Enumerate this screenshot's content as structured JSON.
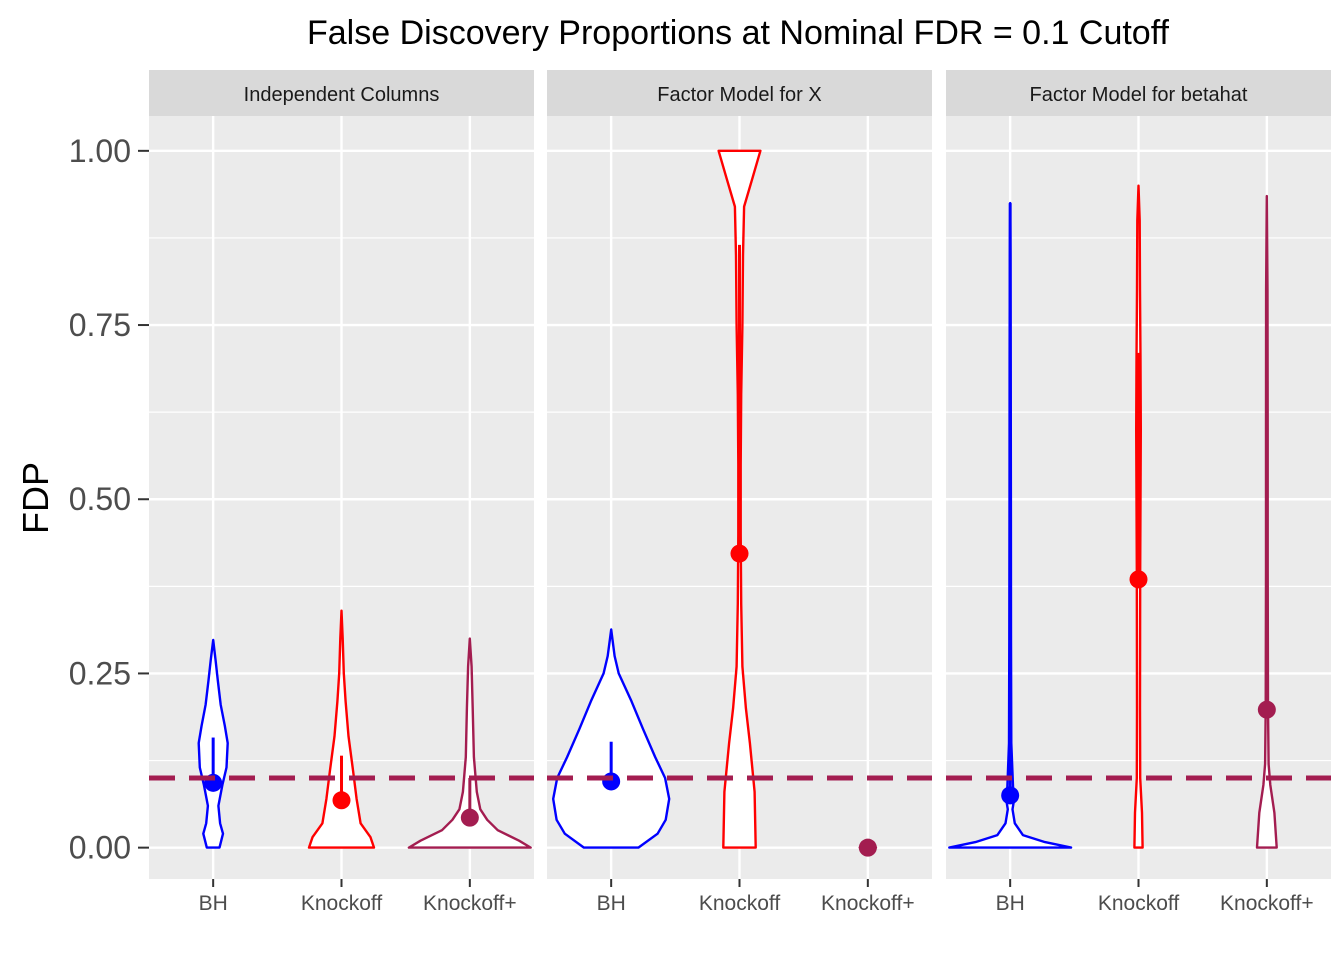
{
  "chart_data": {
    "type": "violin",
    "title": "False Discovery Proportions at Nominal FDR = 0.1 Cutoff",
    "xlabel": "",
    "ylabel": "FDP",
    "ylim": [
      -0.045,
      1.05
    ],
    "yticks": [
      0,
      0.25,
      0.5,
      0.75,
      1
    ],
    "ytick_labels": [
      "0.00",
      "0.25",
      "0.50",
      "0.75",
      "1.00"
    ],
    "categories": [
      "BH",
      "Knockoff",
      "Knockoff+"
    ],
    "reference_line": {
      "y": 0.1,
      "style": "dashed",
      "color": "#A31D50"
    },
    "grid": true,
    "legend": "none",
    "series_colors": {
      "BH": "#0000FF",
      "Knockoff": "#FF0000",
      "Knockoff+": "#A31D50"
    },
    "panels": [
      {
        "label": "Independent Columns",
        "groups": [
          {
            "category": "BH",
            "mean": 0.093,
            "whisker": [
              0.093,
              0.158
            ],
            "violin": [
              [
                0,
                0.11
              ],
              [
                0.02,
                0.17
              ],
              [
                0.035,
                0.12
              ],
              [
                0.06,
                0.09
              ],
              [
                0.09,
                0.16
              ],
              [
                0.115,
                0.23
              ],
              [
                0.15,
                0.25
              ],
              [
                0.175,
                0.2
              ],
              [
                0.205,
                0.13
              ],
              [
                0.24,
                0.08
              ],
              [
                0.27,
                0.04
              ],
              [
                0.298,
                0.0
              ]
            ]
          },
          {
            "category": "Knockoff",
            "mean": 0.068,
            "whisker": [
              0.068,
              0.132
            ],
            "violin": [
              [
                0,
                0.56
              ],
              [
                0.015,
                0.5
              ],
              [
                0.035,
                0.33
              ],
              [
                0.07,
                0.26
              ],
              [
                0.11,
                0.2
              ],
              [
                0.16,
                0.12
              ],
              [
                0.21,
                0.07
              ],
              [
                0.25,
                0.04
              ],
              [
                0.3,
                0.02
              ],
              [
                0.34,
                0.0
              ]
            ]
          },
          {
            "category": "Knockoff+",
            "mean": 0.043,
            "whisker": [
              0.043,
              0.1
            ],
            "violin": [
              [
                0,
                1.05
              ],
              [
                0.01,
                0.85
              ],
              [
                0.025,
                0.48
              ],
              [
                0.04,
                0.3
              ],
              [
                0.055,
                0.18
              ],
              [
                0.08,
                0.12
              ],
              [
                0.13,
                0.07
              ],
              [
                0.2,
                0.05
              ],
              [
                0.26,
                0.03
              ],
              [
                0.3,
                0.0
              ]
            ]
          }
        ]
      },
      {
        "label": "Factor Model for X",
        "groups": [
          {
            "category": "BH",
            "mean": 0.095,
            "whisker": [
              0.095,
              0.152
            ],
            "violin": [
              [
                0,
                0.47
              ],
              [
                0.02,
                0.8
              ],
              [
                0.04,
                0.94
              ],
              [
                0.07,
                1.0
              ],
              [
                0.1,
                0.93
              ],
              [
                0.13,
                0.76
              ],
              [
                0.17,
                0.55
              ],
              [
                0.21,
                0.35
              ],
              [
                0.25,
                0.13
              ],
              [
                0.275,
                0.06
              ],
              [
                0.313,
                0.0
              ]
            ]
          },
          {
            "category": "Knockoff",
            "mean": 0.422,
            "whisker": [
              0.422,
              0.865
            ],
            "violin": [
              [
                0,
                0.28
              ],
              [
                0.08,
                0.26
              ],
              [
                0.15,
                0.18
              ],
              [
                0.2,
                0.11
              ],
              [
                0.26,
                0.05
              ],
              [
                0.35,
                0.03
              ],
              [
                0.45,
                0.02
              ],
              [
                0.55,
                0.02
              ],
              [
                0.65,
                0.03
              ],
              [
                0.75,
                0.05
              ],
              [
                0.85,
                0.06
              ],
              [
                0.92,
                0.08
              ],
              [
                0.96,
                0.22
              ],
              [
                1.0,
                0.36
              ]
            ]
          },
          {
            "category": "Knockoff+",
            "mean": 0.0,
            "whisker": [
              0.0,
              0.0
            ],
            "violin": [
              [
                0,
                0.14
              ],
              [
                0.0005,
                0.0
              ]
            ]
          }
        ]
      },
      {
        "label": "Factor Model for betahat",
        "groups": [
          {
            "category": "BH",
            "mean": 0.075,
            "whisker": [
              0.075,
              0.925
            ],
            "violin": [
              [
                0,
                1.05
              ],
              [
                0.008,
                0.6
              ],
              [
                0.018,
                0.22
              ],
              [
                0.035,
                0.08
              ],
              [
                0.055,
                0.04
              ],
              [
                0.07,
                0.07
              ],
              [
                0.085,
                0.05
              ],
              [
                0.15,
                0.02
              ],
              [
                0.3,
                0.015
              ],
              [
                0.5,
                0.012
              ],
              [
                0.7,
                0.01
              ],
              [
                0.85,
                0.006
              ],
              [
                0.925,
                0.0
              ]
            ]
          },
          {
            "category": "Knockoff",
            "mean": 0.385,
            "whisker": [
              0.385,
              0.71
            ],
            "violin": [
              [
                0,
                0.07
              ],
              [
                0.05,
                0.06
              ],
              [
                0.1,
                0.03
              ],
              [
                0.2,
                0.025
              ],
              [
                0.4,
                0.03
              ],
              [
                0.6,
                0.04
              ],
              [
                0.7,
                0.035
              ],
              [
                0.8,
                0.025
              ],
              [
                0.9,
                0.02
              ],
              [
                0.95,
                0.0
              ]
            ]
          },
          {
            "category": "Knockoff+",
            "mean": 0.198,
            "whisker": [
              0.198,
              0.198
            ],
            "violin": [
              [
                0,
                0.17
              ],
              [
                0.05,
                0.13
              ],
              [
                0.09,
                0.06
              ],
              [
                0.12,
                0.03
              ],
              [
                0.2,
                0.02
              ],
              [
                0.4,
                0.015
              ],
              [
                0.6,
                0.015
              ],
              [
                0.8,
                0.012
              ],
              [
                0.935,
                0.0
              ]
            ]
          }
        ]
      }
    ]
  }
}
